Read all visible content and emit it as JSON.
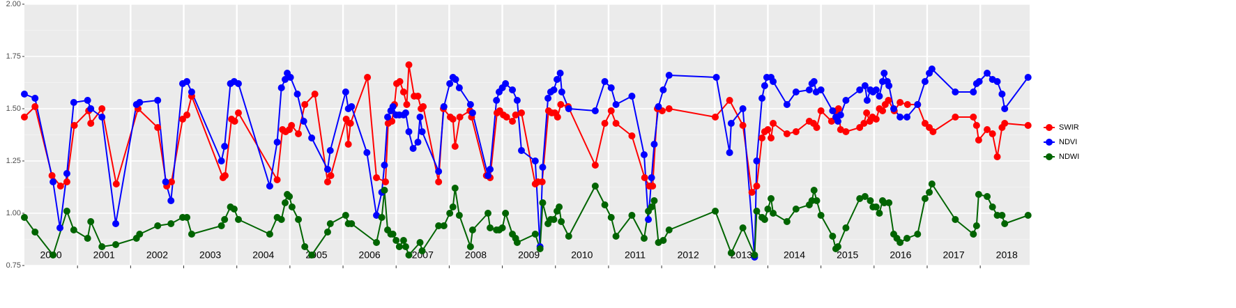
{
  "chart_data": {
    "type": "line",
    "xlim": [
      2000,
      2018.93
    ],
    "ylim": [
      0.75,
      2.0
    ],
    "xticks": [
      2001,
      2002,
      2003,
      2004,
      2005,
      2006,
      2007,
      2008,
      2009,
      2010,
      2011,
      2012,
      2013,
      2014,
      2015,
      2016,
      2017,
      2018
    ],
    "yticks": [
      {
        "value": 0.75,
        "label": "0.75"
      },
      {
        "value": 1.0,
        "label": "1.00"
      },
      {
        "value": 1.25,
        "label": "1.25"
      },
      {
        "value": 1.5,
        "label": "1.50"
      },
      {
        "value": 1.75,
        "label": "1.75"
      },
      {
        "value": 2.0,
        "label": "2.00"
      }
    ],
    "year_labels": [
      {
        "value": 2000.5,
        "label": "2000"
      },
      {
        "value": 2001.5,
        "label": "2001"
      },
      {
        "value": 2002.5,
        "label": "2002"
      },
      {
        "value": 2003.5,
        "label": "2003"
      },
      {
        "value": 2004.5,
        "label": "2004"
      },
      {
        "value": 2005.5,
        "label": "2005"
      },
      {
        "value": 2006.5,
        "label": "2006"
      },
      {
        "value": 2007.5,
        "label": "2007"
      },
      {
        "value": 2008.5,
        "label": "2008"
      },
      {
        "value": 2009.5,
        "label": "2009"
      },
      {
        "value": 2010.5,
        "label": "2010"
      },
      {
        "value": 2011.5,
        "label": "2011"
      },
      {
        "value": 2012.5,
        "label": "2012"
      },
      {
        "value": 2013.5,
        "label": "2013"
      },
      {
        "value": 2014.5,
        "label": "2014"
      },
      {
        "value": 2015.5,
        "label": "2015"
      },
      {
        "value": 2016.5,
        "label": "2016"
      },
      {
        "value": 2017.5,
        "label": "2017"
      },
      {
        "value": 2018.5,
        "label": "2018"
      }
    ],
    "grid": true,
    "legend": "right",
    "series": [
      {
        "name": "SWIR",
        "color": "#ff0000",
        "x": [
          2000.0,
          2000.2,
          2000.52,
          2000.68,
          2000.8,
          2000.94,
          2001.21,
          2001.25,
          2001.46,
          2001.73,
          2002.14,
          2002.51,
          2002.68,
          2002.77,
          2002.98,
          2003.06,
          2003.15,
          2003.74,
          2003.78,
          2003.9,
          2003.96,
          2004.03,
          2004.76,
          2004.86,
          2004.92,
          2004.99,
          2005.03,
          2005.16,
          2005.28,
          2005.47,
          2005.71,
          2005.77,
          2006.06,
          2006.1,
          2006.14,
          2006.46,
          2006.63,
          2006.8,
          2006.85,
          2006.92,
          2006.97,
          2007.01,
          2007.07,
          2007.14,
          2007.2,
          2007.24,
          2007.34,
          2007.41,
          2007.47,
          2007.51,
          2007.8,
          2007.89,
          2008.02,
          2008.07,
          2008.11,
          2008.2,
          2008.39,
          2008.42,
          2008.7,
          2008.77,
          2008.9,
          2008.95,
          2009.02,
          2009.08,
          2009.19,
          2009.25,
          2009.36,
          2009.62,
          2009.67,
          2009.75,
          2009.87,
          2009.93,
          2009.99,
          2010.04,
          2010.1,
          2010.24,
          2010.75,
          2010.93,
          2011.05,
          2011.14,
          2011.44,
          2011.68,
          2011.77,
          2011.83,
          2011.92,
          2012.01,
          2012.14,
          2013.01,
          2013.28,
          2013.53,
          2013.7,
          2013.79,
          2013.89,
          2013.94,
          2014.0,
          2014.06,
          2014.1,
          2014.36,
          2014.53,
          2014.78,
          2014.86,
          2014.92,
          2015.0,
          2015.2,
          2015.29,
          2015.33,
          2015.37,
          2015.47,
          2015.73,
          2015.81,
          2015.86,
          2015.92,
          2015.97,
          2016.04,
          2016.1,
          2016.16,
          2016.21,
          2016.27,
          2016.38,
          2016.49,
          2016.63,
          2016.82,
          2016.96,
          2017.04,
          2017.11,
          2017.53,
          2017.87,
          2017.93,
          2017.97,
          2018.13,
          2018.23,
          2018.32,
          2018.41,
          2018.46,
          2018.9
        ],
        "values": [
          1.46,
          1.51,
          1.18,
          1.13,
          1.15,
          1.42,
          1.49,
          1.43,
          1.5,
          1.14,
          1.5,
          1.41,
          1.13,
          1.15,
          1.45,
          1.47,
          1.56,
          1.17,
          1.18,
          1.45,
          1.44,
          1.48,
          1.16,
          1.4,
          1.39,
          1.4,
          1.42,
          1.38,
          1.52,
          1.57,
          1.15,
          1.18,
          1.45,
          1.33,
          1.43,
          1.65,
          1.17,
          1.15,
          1.43,
          1.44,
          1.52,
          1.62,
          1.63,
          1.58,
          1.52,
          1.71,
          1.56,
          1.56,
          1.5,
          1.51,
          1.15,
          1.5,
          1.46,
          1.45,
          1.32,
          1.46,
          1.49,
          1.46,
          1.18,
          1.17,
          1.48,
          1.49,
          1.47,
          1.46,
          1.44,
          1.47,
          1.48,
          1.14,
          1.15,
          1.15,
          1.49,
          1.48,
          1.48,
          1.46,
          1.52,
          1.51,
          1.23,
          1.43,
          1.49,
          1.43,
          1.37,
          1.17,
          1.13,
          1.13,
          1.5,
          1.49,
          1.5,
          1.46,
          1.54,
          1.42,
          1.1,
          1.13,
          1.36,
          1.39,
          1.4,
          1.36,
          1.43,
          1.38,
          1.39,
          1.44,
          1.43,
          1.41,
          1.49,
          1.44,
          1.49,
          1.5,
          1.4,
          1.39,
          1.41,
          1.43,
          1.48,
          1.44,
          1.46,
          1.45,
          1.5,
          1.49,
          1.52,
          1.54,
          1.49,
          1.53,
          1.52,
          1.52,
          1.43,
          1.41,
          1.39,
          1.46,
          1.46,
          1.42,
          1.35,
          1.4,
          1.38,
          1.27,
          1.41,
          1.43,
          1.42
        ]
      },
      {
        "name": "NDVI",
        "color": "#0000ff",
        "x": [
          2000.0,
          2000.2,
          2000.54,
          2000.67,
          2000.8,
          2000.93,
          2001.19,
          2001.25,
          2001.46,
          2001.72,
          2002.11,
          2002.17,
          2002.51,
          2002.66,
          2002.76,
          2002.98,
          2003.06,
          2003.15,
          2003.71,
          2003.77,
          2003.88,
          2003.95,
          2004.03,
          2004.62,
          2004.76,
          2004.84,
          2004.91,
          2004.95,
          2005.01,
          2005.14,
          2005.26,
          2005.41,
          2005.71,
          2005.76,
          2006.05,
          2006.1,
          2006.16,
          2006.45,
          2006.63,
          2006.73,
          2006.78,
          2006.84,
          2006.9,
          2006.94,
          2007.0,
          2007.06,
          2007.14,
          2007.18,
          2007.24,
          2007.32,
          2007.41,
          2007.45,
          2007.49,
          2007.8,
          2007.9,
          2008.01,
          2008.07,
          2008.12,
          2008.19,
          2008.4,
          2008.44,
          2008.73,
          2008.77,
          2008.89,
          2008.94,
          2009.0,
          2009.06,
          2009.19,
          2009.28,
          2009.36,
          2009.62,
          2009.71,
          2009.76,
          2009.86,
          2009.91,
          2009.97,
          2010.03,
          2010.09,
          2010.12,
          2010.25,
          2010.75,
          2010.93,
          2011.05,
          2011.14,
          2011.44,
          2011.67,
          2011.75,
          2011.81,
          2011.86,
          2011.94,
          2012.03,
          2012.14,
          2013.03,
          2013.28,
          2013.31,
          2013.53,
          2013.75,
          2013.79,
          2013.89,
          2013.94,
          2013.98,
          2014.06,
          2014.1,
          2014.36,
          2014.53,
          2014.78,
          2014.83,
          2014.87,
          2014.91,
          2015.0,
          2015.22,
          2015.28,
          2015.32,
          2015.37,
          2015.47,
          2015.73,
          2015.83,
          2015.87,
          2015.93,
          2015.98,
          2016.04,
          2016.1,
          2016.16,
          2016.19,
          2016.25,
          2016.28,
          2016.37,
          2016.49,
          2016.62,
          2016.82,
          2016.96,
          2017.04,
          2017.09,
          2017.53,
          2017.87,
          2017.93,
          2017.98,
          2018.13,
          2018.23,
          2018.32,
          2018.41,
          2018.46,
          2018.9
        ],
        "values": [
          1.57,
          1.55,
          1.15,
          0.93,
          1.19,
          1.53,
          1.54,
          1.5,
          1.46,
          0.95,
          1.52,
          1.53,
          1.54,
          1.15,
          1.06,
          1.62,
          1.63,
          1.58,
          1.25,
          1.32,
          1.62,
          1.63,
          1.62,
          1.13,
          1.34,
          1.6,
          1.64,
          1.67,
          1.65,
          1.57,
          1.44,
          1.36,
          1.21,
          1.3,
          1.58,
          1.5,
          1.51,
          1.29,
          0.99,
          1.1,
          1.23,
          1.46,
          1.49,
          1.51,
          1.47,
          1.47,
          1.47,
          1.48,
          1.39,
          1.31,
          1.34,
          1.46,
          1.39,
          1.2,
          1.51,
          1.62,
          1.65,
          1.64,
          1.6,
          1.52,
          1.48,
          1.18,
          1.21,
          1.54,
          1.58,
          1.6,
          1.62,
          1.59,
          1.54,
          1.3,
          1.25,
          0.84,
          1.22,
          1.55,
          1.58,
          1.59,
          1.64,
          1.67,
          1.58,
          1.5,
          1.49,
          1.63,
          1.6,
          1.52,
          1.56,
          1.28,
          0.97,
          1.17,
          1.33,
          1.51,
          1.59,
          1.66,
          1.65,
          1.29,
          1.43,
          1.5,
          0.79,
          1.25,
          1.55,
          1.61,
          1.65,
          1.65,
          1.63,
          1.52,
          1.58,
          1.59,
          1.62,
          1.63,
          1.58,
          1.59,
          1.49,
          1.46,
          1.44,
          1.47,
          1.54,
          1.59,
          1.61,
          1.54,
          1.59,
          1.58,
          1.59,
          1.56,
          1.63,
          1.67,
          1.63,
          1.61,
          1.5,
          1.46,
          1.46,
          1.52,
          1.63,
          1.67,
          1.69,
          1.58,
          1.58,
          1.62,
          1.63,
          1.67,
          1.64,
          1.63,
          1.57,
          1.5,
          1.65
        ]
      },
      {
        "name": "NDWI",
        "color": "#006400",
        "x": [
          2000.0,
          2000.2,
          2000.54,
          2000.8,
          2000.93,
          2001.19,
          2001.25,
          2001.46,
          2001.72,
          2002.11,
          2002.17,
          2002.51,
          2002.76,
          2002.98,
          2003.06,
          2003.15,
          2003.71,
          2003.77,
          2003.88,
          2003.95,
          2004.03,
          2004.62,
          2004.76,
          2004.84,
          2004.91,
          2004.95,
          2004.99,
          2005.04,
          2005.16,
          2005.28,
          2005.41,
          2005.71,
          2005.76,
          2006.05,
          2006.1,
          2006.16,
          2006.63,
          2006.73,
          2006.78,
          2006.84,
          2006.9,
          2006.94,
          2007.0,
          2007.06,
          2007.14,
          2007.18,
          2007.24,
          2007.45,
          2007.49,
          2007.8,
          2007.9,
          2008.01,
          2008.07,
          2008.11,
          2008.19,
          2008.4,
          2008.44,
          2008.73,
          2008.77,
          2008.89,
          2008.94,
          2009.0,
          2009.06,
          2009.19,
          2009.25,
          2009.28,
          2009.62,
          2009.71,
          2009.76,
          2009.86,
          2009.91,
          2009.97,
          2010.03,
          2010.07,
          2010.11,
          2010.25,
          2010.75,
          2010.93,
          2011.05,
          2011.14,
          2011.44,
          2011.67,
          2011.75,
          2011.81,
          2011.86,
          2011.94,
          2012.03,
          2012.14,
          2013.01,
          2013.31,
          2013.53,
          2013.75,
          2013.79,
          2013.89,
          2013.94,
          2014.0,
          2014.06,
          2014.1,
          2014.36,
          2014.53,
          2014.78,
          2014.83,
          2014.87,
          2014.92,
          2015.0,
          2015.22,
          2015.28,
          2015.32,
          2015.47,
          2015.73,
          2015.83,
          2015.93,
          2015.98,
          2016.04,
          2016.1,
          2016.16,
          2016.19,
          2016.28,
          2016.37,
          2016.43,
          2016.49,
          2016.62,
          2016.82,
          2016.96,
          2017.04,
          2017.09,
          2017.53,
          2017.87,
          2017.93,
          2017.97,
          2018.13,
          2018.23,
          2018.32,
          2018.41,
          2018.46,
          2018.9
        ],
        "values": [
          0.98,
          0.91,
          0.8,
          1.01,
          0.92,
          0.88,
          0.96,
          0.84,
          0.85,
          0.88,
          0.9,
          0.94,
          0.95,
          0.98,
          0.98,
          0.9,
          0.94,
          0.97,
          1.03,
          1.02,
          0.97,
          0.9,
          0.98,
          0.97,
          1.05,
          1.09,
          1.08,
          1.03,
          0.97,
          0.84,
          0.8,
          0.91,
          0.95,
          0.99,
          0.95,
          0.95,
          0.86,
          0.98,
          1.11,
          0.92,
          0.9,
          0.9,
          0.87,
          0.84,
          0.87,
          0.84,
          0.8,
          0.86,
          0.82,
          0.94,
          0.94,
          1.0,
          1.03,
          1.12,
          0.99,
          0.84,
          0.92,
          1.0,
          0.93,
          0.92,
          0.92,
          0.93,
          1.0,
          0.9,
          0.88,
          0.86,
          0.9,
          0.83,
          1.05,
          0.95,
          0.97,
          0.97,
          1.01,
          1.03,
          0.96,
          0.89,
          1.13,
          1.04,
          0.98,
          0.89,
          0.99,
          0.88,
          1.01,
          1.03,
          1.06,
          0.86,
          0.87,
          0.92,
          1.01,
          0.81,
          0.93,
          0.8,
          1.01,
          0.98,
          0.97,
          1.02,
          1.07,
          1.0,
          0.96,
          1.02,
          1.04,
          1.06,
          1.11,
          1.06,
          0.99,
          0.89,
          0.83,
          0.84,
          0.93,
          1.07,
          1.08,
          1.06,
          1.03,
          1.03,
          1.0,
          1.06,
          1.05,
          1.05,
          0.9,
          0.88,
          0.86,
          0.88,
          0.9,
          1.07,
          1.1,
          1.14,
          0.97,
          0.9,
          0.94,
          1.09,
          1.08,
          1.03,
          0.99,
          0.99,
          0.95,
          0.99
        ]
      }
    ]
  }
}
